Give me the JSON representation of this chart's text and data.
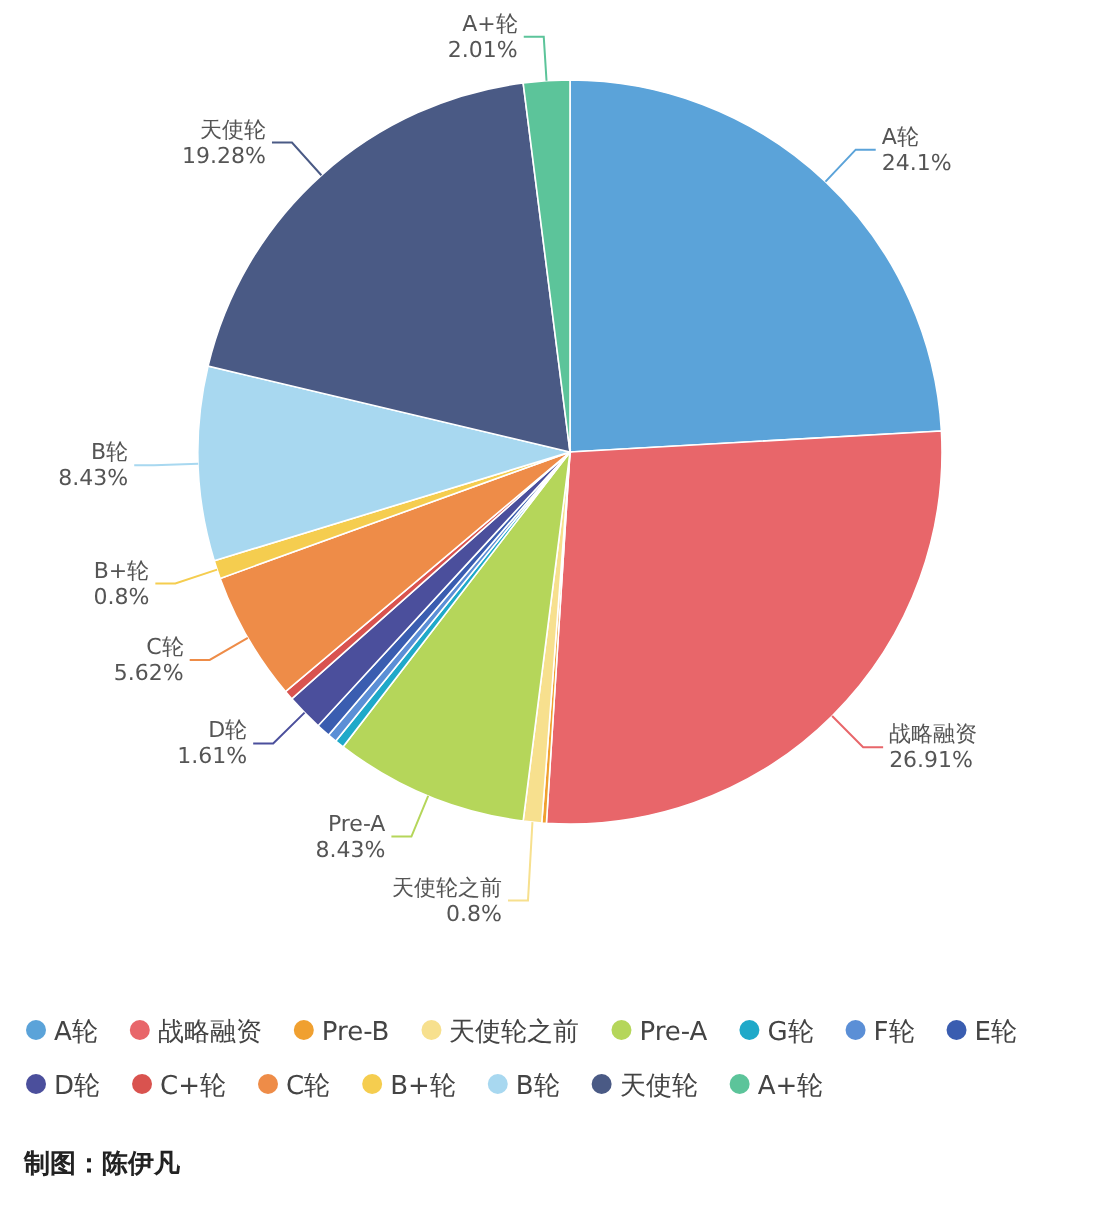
{
  "chart_data": {
    "type": "pie",
    "categories": [
      "A轮",
      "战略融资",
      "Pre-B",
      "天使轮之前",
      "Pre-A",
      "G轮",
      "F轮",
      "E轮",
      "D轮",
      "C+轮",
      "C轮",
      "B+轮",
      "B轮",
      "天使轮",
      "A+轮"
    ],
    "values": [
      24.1,
      26.91,
      0.2,
      0.8,
      8.43,
      0.4,
      0.4,
      0.6,
      1.61,
      0.41,
      5.62,
      0.8,
      8.43,
      19.28,
      2.01
    ],
    "value_labels": [
      "24.1%",
      "26.91%",
      null,
      "0.8%",
      "8.43%",
      null,
      null,
      null,
      "1.61%",
      null,
      "5.62%",
      "0.8%",
      "8.43%",
      "19.28%",
      "2.01%"
    ],
    "colors": [
      "#5ba3d9",
      "#e8666a",
      "#f0a030",
      "#f7e08e",
      "#b5d65a",
      "#1fa9c9",
      "#5b8fd6",
      "#3a5db0",
      "#4b4f9c",
      "#d9534f",
      "#ee8c48",
      "#f5cd4f",
      "#a8d8f0",
      "#4a5a85",
      "#5cc49a"
    ],
    "legend": "bottom",
    "annotations": [
      "制图：陈伊凡"
    ]
  }
}
